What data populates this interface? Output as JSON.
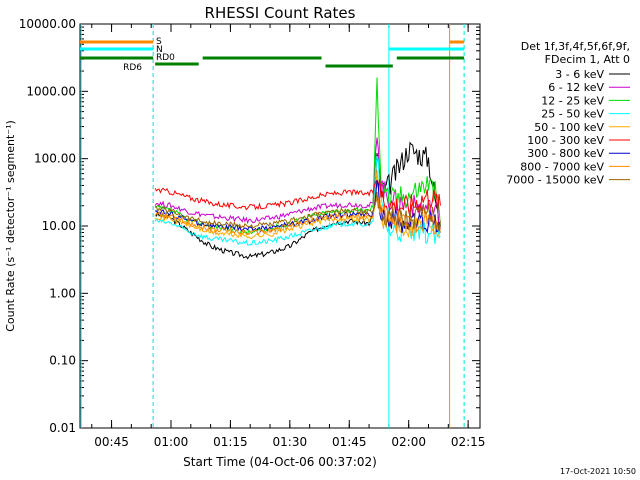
{
  "chart_data": {
    "type": "line",
    "title": "RHESSI Count Rates",
    "xlabel": "Start Time (04-Oct-06 00:37:02)",
    "ylabel": "Count Rate (s⁻¹ detector⁻¹ segment⁻¹)",
    "y_scale": "log",
    "ylim": [
      0.01,
      10000
    ],
    "xlim": [
      "00:37:02",
      "02:18:00"
    ],
    "x_unit": "time (HH:MM)",
    "x_ticks": [
      "00:45",
      "01:00",
      "01:15",
      "01:30",
      "01:45",
      "02:00",
      "02:15"
    ],
    "y_ticks": [
      "0.01",
      "0.10",
      "1.00",
      "10.00",
      "100.00",
      "1000.00",
      "10000.00"
    ],
    "grid": false,
    "legend_placement": "right",
    "legend_header": [
      "Det 1f,3f,4f,5f,6f,9f,",
      "FDecim 1, Att 0"
    ],
    "timestamp": "17-Oct-2021 10:50",
    "series": [
      {
        "name": "3 - 6 keV",
        "color": "#000000",
        "x": [
          "00:56",
          "01:00",
          "01:05",
          "01:10",
          "01:15",
          "01:20",
          "01:25",
          "01:30",
          "01:35",
          "01:40",
          "01:45",
          "01:50",
          "01:51",
          "01:52",
          "01:53",
          "01:55",
          "02:00",
          "02:05",
          "02:07",
          "02:08"
        ],
        "y": [
          15,
          13,
          8,
          5,
          4,
          3.5,
          4,
          5,
          8,
          11,
          12,
          11,
          14,
          120,
          30,
          40,
          140,
          100,
          20,
          8
        ]
      },
      {
        "name": "6 - 12 keV",
        "color": "#cc00cc",
        "x": [
          "00:56",
          "01:00",
          "01:05",
          "01:10",
          "01:15",
          "01:20",
          "01:25",
          "01:30",
          "01:35",
          "01:40",
          "01:45",
          "01:50",
          "01:51",
          "01:52",
          "01:53",
          "01:55",
          "02:00",
          "02:05",
          "02:07",
          "02:08"
        ],
        "y": [
          22,
          20,
          16,
          14,
          13,
          12,
          13,
          15,
          18,
          20,
          21,
          20,
          22,
          300,
          40,
          25,
          20,
          18,
          16,
          10
        ]
      },
      {
        "name": "12 - 25 keV",
        "color": "#00dd00",
        "x": [
          "00:56",
          "01:00",
          "01:05",
          "01:10",
          "01:15",
          "01:20",
          "01:25",
          "01:30",
          "01:35",
          "01:40",
          "01:45",
          "01:50",
          "01:51",
          "01:52",
          "01:53",
          "01:55",
          "02:00",
          "02:05",
          "02:07",
          "02:08"
        ],
        "y": [
          19,
          17,
          12,
          10,
          9,
          8,
          9,
          11,
          14,
          16,
          17,
          17,
          20,
          1500,
          60,
          25,
          30,
          45,
          30,
          10
        ]
      },
      {
        "name": "25 - 50 keV",
        "color": "#00ffff",
        "x": [
          "00:56",
          "01:00",
          "01:05",
          "01:10",
          "01:15",
          "01:20",
          "01:25",
          "01:30",
          "01:35",
          "01:40",
          "01:45",
          "01:50",
          "01:51",
          "01:52",
          "01:53",
          "01:55",
          "02:00",
          "02:05",
          "02:07",
          "02:08"
        ],
        "y": [
          12,
          11,
          8,
          6.5,
          6,
          5.5,
          6,
          7,
          8.5,
          10,
          11,
          10.5,
          11,
          150,
          20,
          9,
          8,
          8,
          7,
          7
        ]
      },
      {
        "name": "50 - 100 keV",
        "color": "#ffaa00",
        "x": [
          "00:56",
          "01:00",
          "01:05",
          "01:10",
          "01:15",
          "01:20",
          "01:25",
          "01:30",
          "01:35",
          "01:40",
          "01:45",
          "01:50",
          "01:51",
          "01:52",
          "01:53",
          "01:55",
          "02:00",
          "02:05",
          "02:07",
          "02:08"
        ],
        "y": [
          14,
          13,
          10,
          8,
          7.5,
          7,
          7.5,
          9,
          11,
          12.5,
          13,
          12.5,
          13,
          60,
          15,
          11,
          10,
          12,
          11,
          9
        ]
      },
      {
        "name": "100 - 300 keV",
        "color": "#ff0000",
        "x": [
          "00:56",
          "01:00",
          "01:05",
          "01:10",
          "01:15",
          "01:20",
          "01:25",
          "01:30",
          "01:35",
          "01:40",
          "01:45",
          "01:50",
          "01:51",
          "01:52",
          "01:53",
          "01:55",
          "02:00",
          "02:05",
          "02:07",
          "02:08"
        ],
        "y": [
          35,
          32,
          26,
          22,
          20,
          19,
          20,
          22,
          26,
          30,
          32,
          30,
          32,
          60,
          30,
          22,
          20,
          30,
          25,
          20
        ]
      },
      {
        "name": "300 - 800 keV",
        "color": "#0000cc",
        "x": [
          "00:56",
          "01:00",
          "01:05",
          "01:10",
          "01:15",
          "01:20",
          "01:25",
          "01:30",
          "01:35",
          "01:40",
          "01:45",
          "01:50",
          "01:51",
          "01:52",
          "01:53",
          "01:55",
          "02:00",
          "02:05",
          "02:07",
          "02:08"
        ],
        "y": [
          17,
          15,
          12,
          10,
          9.5,
          9,
          9.5,
          10.5,
          12,
          14,
          15,
          14.5,
          15,
          40,
          18,
          12,
          11,
          12,
          11,
          10
        ]
      },
      {
        "name": "800 - 7000 keV",
        "color": "#ff8800",
        "x": [
          "00:56",
          "01:00",
          "01:05",
          "01:10",
          "01:15",
          "01:20",
          "01:25",
          "01:30",
          "01:35",
          "01:40",
          "01:45",
          "01:50",
          "01:51",
          "01:52",
          "01:53",
          "01:55",
          "02:00",
          "02:05",
          "02:07",
          "02:08"
        ],
        "y": [
          15,
          14,
          11,
          9,
          8.5,
          8,
          8.5,
          10,
          12,
          13.5,
          14,
          13.5,
          14,
          30,
          16,
          12,
          11,
          12,
          11,
          10
        ]
      },
      {
        "name": "7000 - 15000 keV",
        "color": "#996600",
        "x": [
          "00:56",
          "01:00",
          "01:05",
          "01:10",
          "01:15",
          "01:20",
          "01:25",
          "01:30",
          "01:35",
          "01:40",
          "01:45",
          "01:50",
          "01:51",
          "01:52",
          "01:53",
          "01:55",
          "02:00",
          "02:05",
          "02:07",
          "02:08"
        ],
        "y": [
          18,
          17,
          13,
          11,
          10.5,
          10,
          10.5,
          12,
          14,
          16,
          17,
          16,
          17,
          25,
          18,
          14,
          13,
          14,
          13,
          12
        ]
      }
    ],
    "vertical_markers": [
      {
        "time": "00:37:20",
        "color": "#00ffff",
        "style": "solid"
      },
      {
        "time": "00:55:30",
        "color": "#ff8800",
        "style": "dashed"
      },
      {
        "time": "00:55:30",
        "color": "#00ffff",
        "style": "dashed"
      },
      {
        "time": "01:55:00",
        "color": "#00ffff",
        "style": "solid"
      },
      {
        "time": "02:10:20",
        "color": "#ff8800",
        "style": "solid"
      },
      {
        "time": "02:14:00",
        "color": "#ff8800",
        "style": "dashed"
      },
      {
        "time": "02:14:00",
        "color": "#00ffff",
        "style": "dashed"
      }
    ],
    "flag_bars": [
      {
        "label": "S",
        "color": "#ff8800",
        "segments": [
          [
            "00:37:02",
            "00:55:30"
          ],
          [
            "02:10:20",
            "02:14:00"
          ]
        ]
      },
      {
        "label": "N",
        "color": "#00ffff",
        "segments": [
          [
            "00:37:02",
            "00:55:30"
          ],
          [
            "01:55:00",
            "02:14:00"
          ]
        ]
      },
      {
        "label": "RD0",
        "color": "#008000",
        "segments": [
          [
            "00:37:02",
            "00:55:30"
          ],
          [
            "00:56",
            "01:07"
          ],
          [
            "01:08",
            "01:38"
          ],
          [
            "01:39",
            "01:56"
          ],
          [
            "01:57",
            "02:14:00"
          ]
        ]
      },
      {
        "label": "RD6",
        "color": "#008000",
        "segments": []
      }
    ]
  }
}
